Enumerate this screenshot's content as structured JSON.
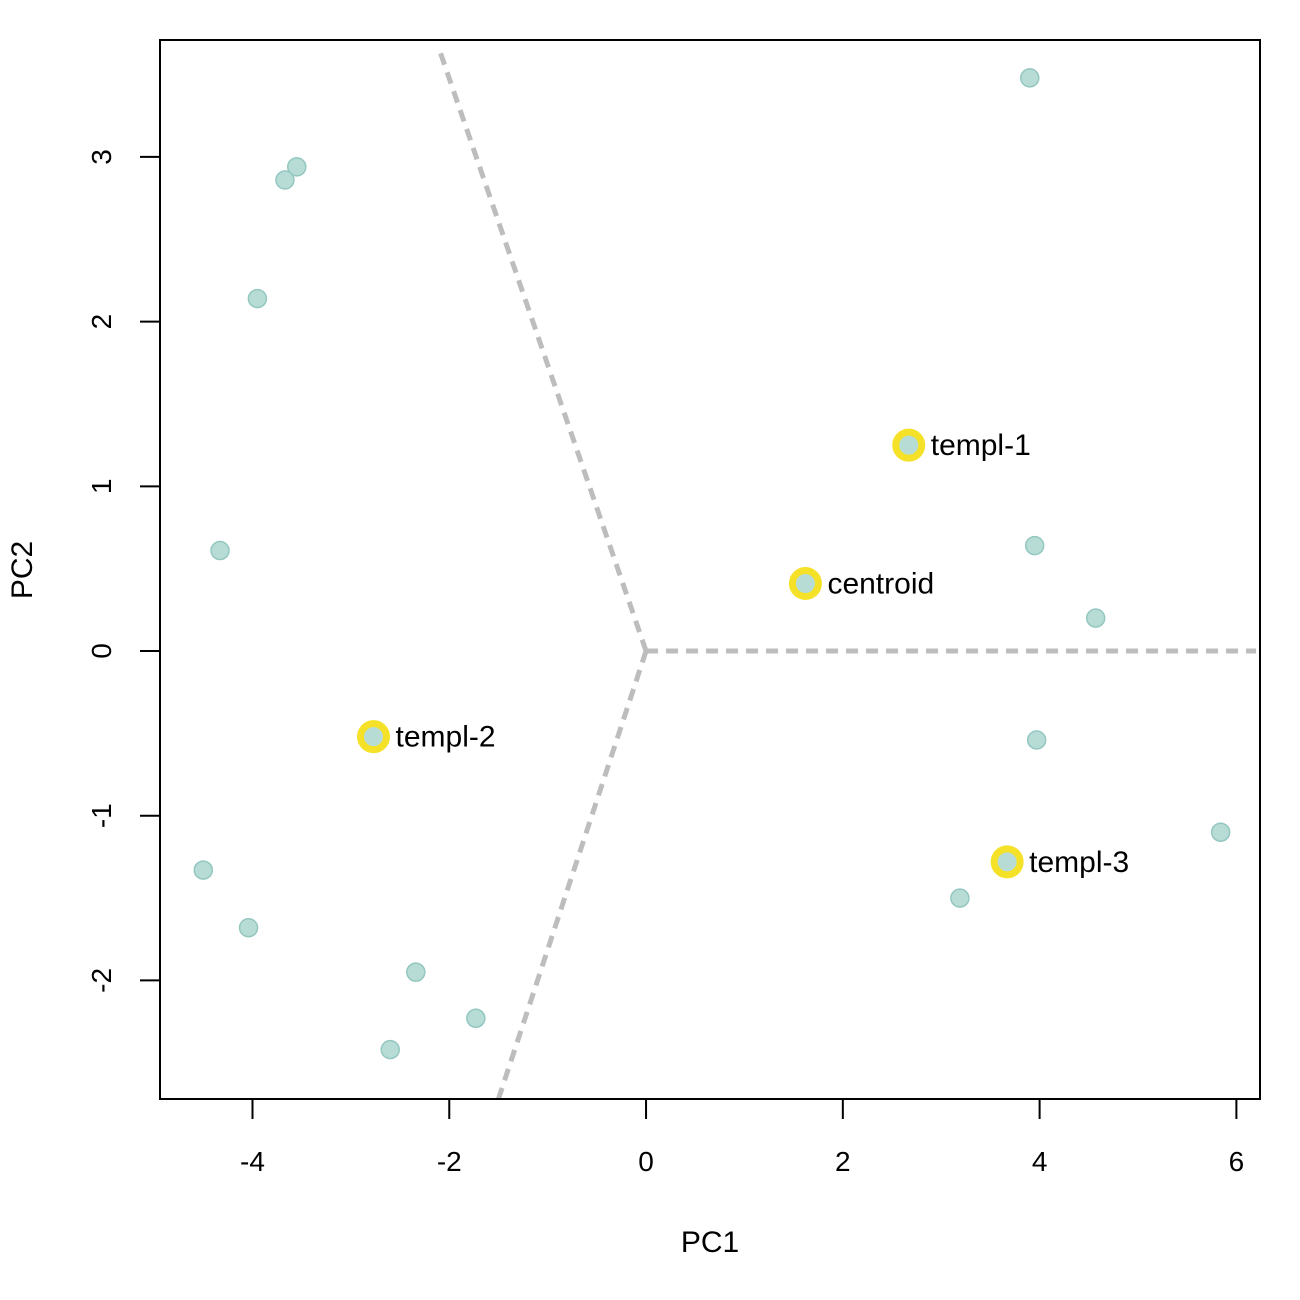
{
  "chart_data": {
    "type": "scatter",
    "xlabel": "PC1",
    "ylabel": "PC2",
    "xlim": [
      -4.94,
      6.24
    ],
    "ylim": [
      -2.72,
      3.71
    ],
    "xticks": [
      -4,
      -2,
      0,
      2,
      4,
      6
    ],
    "xtick_labels": [
      "-4",
      "-2",
      "0",
      "2",
      "4",
      "6"
    ],
    "yticks": [
      -2,
      -1,
      0,
      1,
      2,
      3
    ],
    "ytick_labels": [
      "-2",
      "-1",
      "0",
      "1",
      "2",
      "3"
    ],
    "colors": {
      "point_fill": "#b7dcd6",
      "point_stroke": "#93c7c0",
      "highlight": "#f5e228",
      "divider": "#bdbdbd",
      "axis": "#000000"
    },
    "points": [
      {
        "x": 3.9,
        "y": 3.48
      },
      {
        "x": -3.55,
        "y": 2.94
      },
      {
        "x": -3.67,
        "y": 2.86
      },
      {
        "x": -3.95,
        "y": 2.14
      },
      {
        "x": -4.33,
        "y": 0.61
      },
      {
        "x": 3.95,
        "y": 0.64
      },
      {
        "x": 4.57,
        "y": 0.2
      },
      {
        "x": 3.97,
        "y": -0.54
      },
      {
        "x": 5.84,
        "y": -1.1
      },
      {
        "x": 3.19,
        "y": -1.5
      },
      {
        "x": -4.5,
        "y": -1.33
      },
      {
        "x": -4.04,
        "y": -1.68
      },
      {
        "x": -2.34,
        "y": -1.95
      },
      {
        "x": -1.73,
        "y": -2.23
      },
      {
        "x": -2.6,
        "y": -2.42
      }
    ],
    "highlighted": [
      {
        "label": "templ-1",
        "x": 2.67,
        "y": 1.25
      },
      {
        "label": "centroid",
        "x": 1.62,
        "y": 0.41
      },
      {
        "label": "templ-2",
        "x": -2.77,
        "y": -0.52
      },
      {
        "label": "templ-3",
        "x": 3.67,
        "y": -1.28
      }
    ],
    "dividers": [
      {
        "from": [
          0,
          0
        ],
        "to": [
          -2.1,
          3.65
        ]
      },
      {
        "from": [
          0,
          0
        ],
        "to": [
          6.2,
          0
        ]
      },
      {
        "from": [
          0,
          0
        ],
        "to": [
          -1.5,
          -2.72
        ]
      }
    ]
  }
}
